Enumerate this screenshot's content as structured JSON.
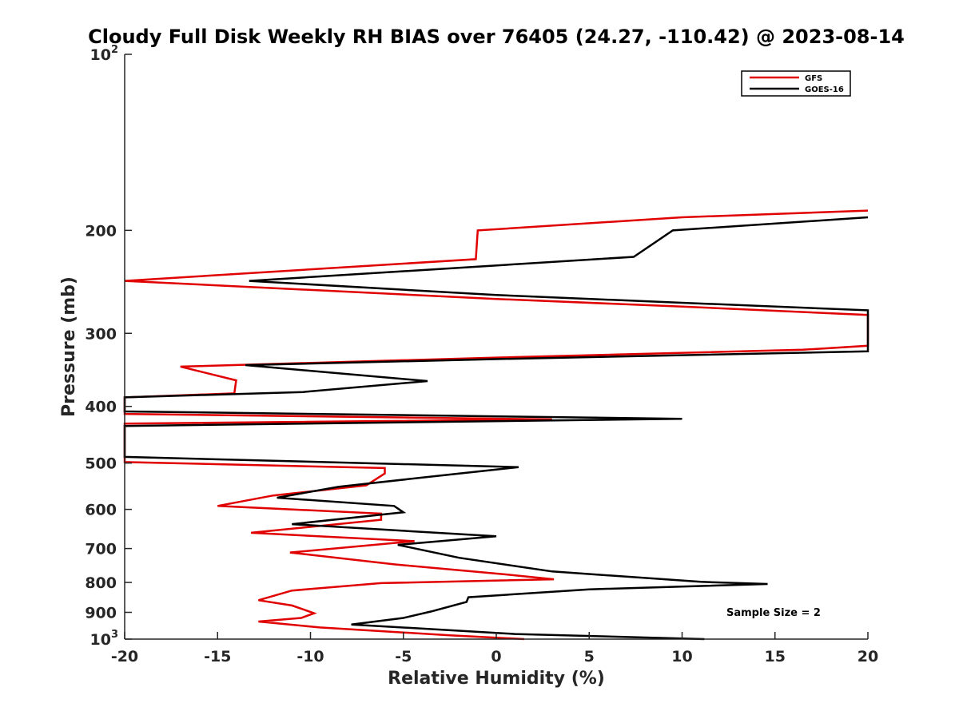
{
  "chart_data": {
    "type": "line",
    "title": "Cloudy Full Disk Weekly RH BIAS over 76405 (24.27, -110.42) @ 2023-08-14",
    "xlabel": "Relative Humidity (%)",
    "ylabel": "Pressure (mb)",
    "xlim": [
      -20,
      20
    ],
    "ylim": [
      100,
      1000
    ],
    "yscale": "log",
    "yreverse": true,
    "x_ticks": [
      -20,
      -15,
      -10,
      -5,
      0,
      5,
      10,
      15,
      20
    ],
    "x_tick_labels": [
      "-20",
      "-15",
      "-10",
      "-5",
      "0",
      "5",
      "10",
      "15",
      "20"
    ],
    "y_ticks": [
      {
        "value": 100,
        "base": "10",
        "exp": "2"
      },
      {
        "value": 200,
        "label": "200"
      },
      {
        "value": 300,
        "label": "300"
      },
      {
        "value": 400,
        "label": "400"
      },
      {
        "value": 500,
        "label": "500"
      },
      {
        "value": 600,
        "label": "600"
      },
      {
        "value": 700,
        "label": "700"
      },
      {
        "value": 800,
        "label": "800"
      },
      {
        "value": 900,
        "label": "900"
      },
      {
        "value": 1000,
        "base": "10",
        "exp": "3"
      }
    ],
    "legend_position": "top-right",
    "annotation": "Sample Size = 2",
    "series": [
      {
        "name": "GFS",
        "color": "#e00000",
        "points": [
          [
            20,
            185
          ],
          [
            10,
            190
          ],
          [
            -1,
            200
          ],
          [
            -1.1,
            224
          ],
          [
            -20,
            244
          ],
          [
            0,
            262
          ],
          [
            10,
            270
          ],
          [
            20,
            279
          ],
          [
            20,
            315
          ],
          [
            16.5,
            320
          ],
          [
            0,
            330
          ],
          [
            -17,
            342
          ],
          [
            -14,
            361
          ],
          [
            -14.1,
            380
          ],
          [
            -20,
            386
          ],
          [
            -20,
            412
          ],
          [
            3,
            421
          ],
          [
            -20,
            428
          ],
          [
            -20,
            435
          ],
          [
            -20,
            498
          ],
          [
            -6,
            510
          ],
          [
            -6,
            521
          ],
          [
            -7,
            546
          ],
          [
            -12,
            568
          ],
          [
            -15,
            592
          ],
          [
            -6.2,
            610
          ],
          [
            -6.2,
            625
          ],
          [
            -13.2,
            658
          ],
          [
            -4.4,
            680
          ],
          [
            -11.1,
            711
          ],
          [
            -5.5,
            745
          ],
          [
            0.5,
            775
          ],
          [
            3.1,
            790
          ],
          [
            -6.2,
            802
          ],
          [
            -11,
            826
          ],
          [
            -12.8,
            858
          ],
          [
            -11,
            876
          ],
          [
            -9.8,
            903
          ],
          [
            -10.5,
            920
          ],
          [
            -12.8,
            933
          ],
          [
            -9.5,
            955
          ],
          [
            -2.5,
            985
          ],
          [
            1.5,
            1000
          ]
        ]
      },
      {
        "name": "GOES-16",
        "color": "#000000",
        "points": [
          [
            20,
            190
          ],
          [
            9.5,
            200
          ],
          [
            7.4,
            222
          ],
          [
            -13.3,
            244
          ],
          [
            0,
            258
          ],
          [
            10,
            266
          ],
          [
            20,
            274
          ],
          [
            20,
            322
          ],
          [
            0,
            332
          ],
          [
            -13.5,
            340
          ],
          [
            -3.7,
            362
          ],
          [
            -10.4,
            378
          ],
          [
            -20,
            386
          ],
          [
            -20,
            408
          ],
          [
            10,
            420
          ],
          [
            -20,
            432
          ],
          [
            -20,
            438
          ],
          [
            -20,
            488
          ],
          [
            1.2,
            508
          ],
          [
            -2,
            521
          ],
          [
            -8.5,
            549
          ],
          [
            -11.8,
            573
          ],
          [
            -5.5,
            592
          ],
          [
            -5,
            607
          ],
          [
            -11,
            636
          ],
          [
            0,
            667
          ],
          [
            -5.3,
            690
          ],
          [
            -2,
            726
          ],
          [
            3,
            766
          ],
          [
            11,
            798
          ],
          [
            14.6,
            805
          ],
          [
            5,
            822
          ],
          [
            -1.5,
            848
          ],
          [
            -1.6,
            864
          ],
          [
            -3.5,
            897
          ],
          [
            -5,
            920
          ],
          [
            -7.8,
            944
          ],
          [
            1,
            980
          ],
          [
            11.2,
            1000
          ]
        ]
      }
    ]
  }
}
